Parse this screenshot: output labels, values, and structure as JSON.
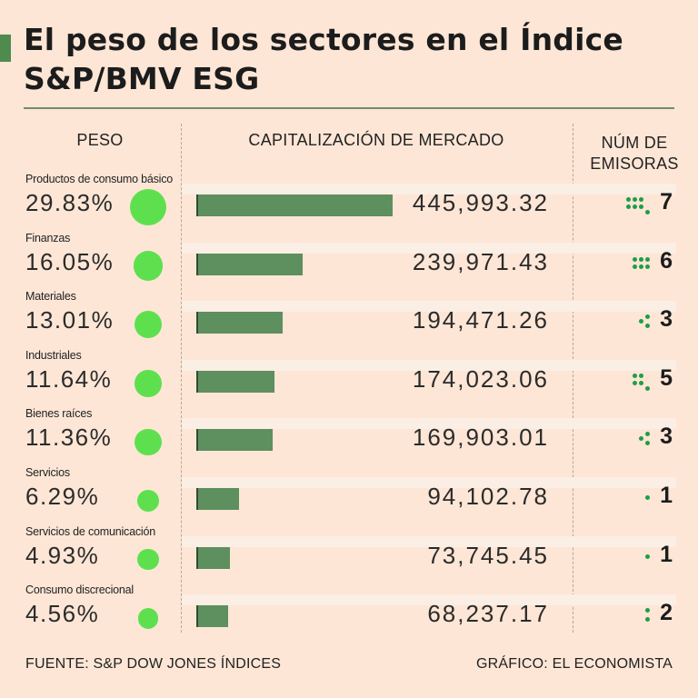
{
  "title": "El peso de los sectores en el Índice S&P/BMV ESG",
  "headers": {
    "weight": "PESO",
    "market_cap": "CAPITALIZACIÓN DE MERCADO",
    "issuers_line1": "NÚM DE",
    "issuers_line2": "EMISORAS"
  },
  "footer": {
    "source": "FUENTE: S&P DOW JONES ÍNDICES",
    "credit": "GRÁFICO: EL ECONOMISTA"
  },
  "colors": {
    "background": "#fde6d6",
    "bar": "#5e8f5e",
    "weight_dot": "#5ee04e",
    "issuer_dot": "#1e9e47"
  },
  "chart_data": {
    "type": "bar",
    "title": "El peso de los sectores en el Índice S&P/BMV ESG",
    "xlabel": "CAPITALIZACIÓN DE MERCADO",
    "ylabel": "",
    "categories": [
      "Productos de consumo básico",
      "Finanzas",
      "Materiales",
      "Industriales",
      "Bienes raíces",
      "Servicios",
      "Servicios de comunicación",
      "Consumo discrecional"
    ],
    "series": [
      {
        "name": "Peso (%)",
        "values": [
          29.83,
          16.05,
          13.01,
          11.64,
          11.36,
          6.29,
          4.93,
          4.56
        ],
        "labels": [
          "29.83%",
          "16.05%",
          "13.01%",
          "11.64%",
          "11.36%",
          "6.29%",
          "4.93%",
          "4.56%"
        ]
      },
      {
        "name": "Capitalización de mercado",
        "values": [
          445993.32,
          239971.43,
          194471.26,
          174023.06,
          169903.01,
          94102.78,
          73745.45,
          68237.17
        ],
        "labels": [
          "445,993.32",
          "239,971.43",
          "194,471.26",
          "174,023.06",
          "169,903.01",
          "94,102.78",
          "73,745.45",
          "68,237.17"
        ]
      },
      {
        "name": "Núm de emisoras",
        "values": [
          7,
          6,
          3,
          5,
          3,
          1,
          1,
          2
        ],
        "labels": [
          "7",
          "6",
          "3",
          "5",
          "3",
          "1",
          "1",
          "2"
        ]
      }
    ],
    "xlim": [
      0,
      445993.32
    ]
  }
}
